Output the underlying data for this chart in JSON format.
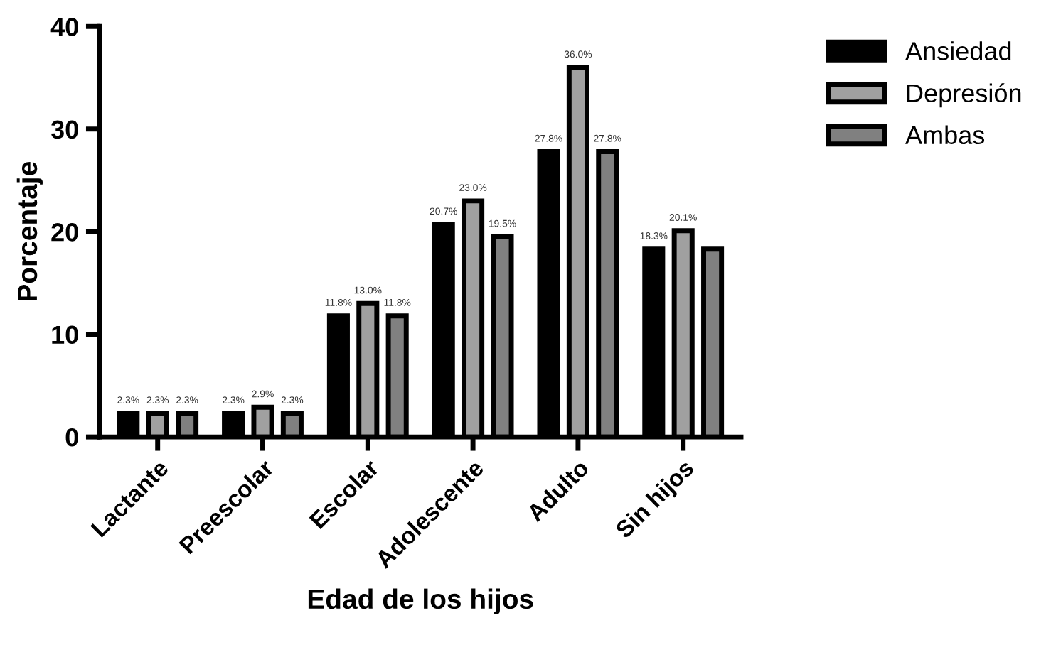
{
  "chart_data": {
    "type": "bar",
    "xlabel": "Edad de los hijos",
    "ylabel": "Porcentaje",
    "categories": [
      "Lactante",
      "Preescolar",
      "Escolar",
      "Adolescente",
      "Adulto",
      "Sin hijos"
    ],
    "series": [
      {
        "name": "Ansiedad",
        "color": "#000000",
        "values": [
          2.3,
          2.3,
          11.8,
          20.7,
          27.8,
          18.3
        ],
        "value_labels": [
          "2.3%",
          "2.3%",
          "11.8%",
          "20.7%",
          "27.8%",
          "18.3%"
        ]
      },
      {
        "name": "Depresión",
        "color": "#a0a0a0",
        "values": [
          2.3,
          2.9,
          13.0,
          23.0,
          36.0,
          20.1
        ],
        "value_labels": [
          "2.3%",
          "2.9%",
          "13.0%",
          "23.0%",
          "36.0%",
          "20.1%"
        ]
      },
      {
        "name": "Ambas",
        "color": "#808080",
        "values": [
          2.3,
          2.3,
          11.8,
          19.5,
          27.8,
          18.3
        ],
        "value_labels": [
          "2.3%",
          "2.3%",
          "11.8%",
          "19.5%",
          "27.8%",
          null
        ]
      }
    ],
    "ylim": [
      0,
      40
    ],
    "yticks": [
      0,
      10,
      20,
      30,
      40
    ],
    "grid": false,
    "legend": "top right"
  }
}
